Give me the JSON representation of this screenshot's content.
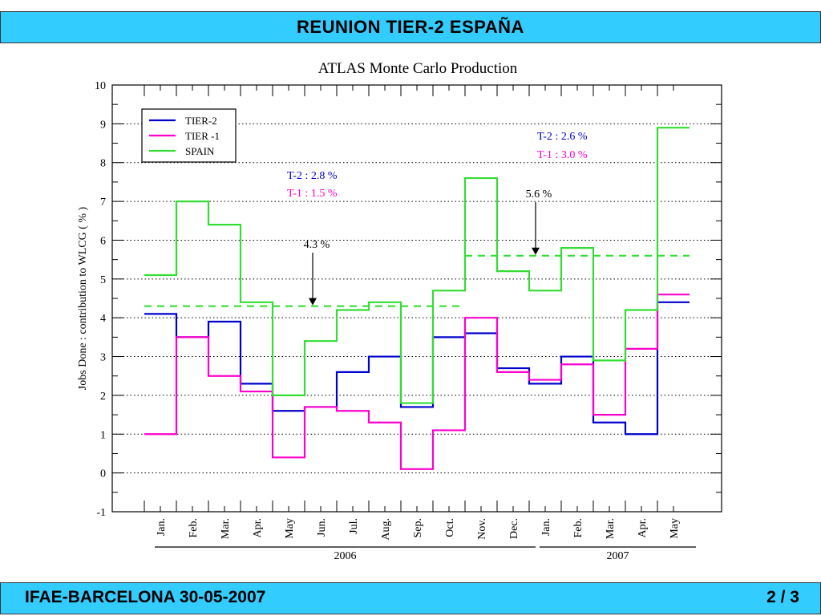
{
  "slide": {
    "header_title": "REUNION  TIER-2  ESPAÑA",
    "footer_left": "IFAE-BARCELONA  30-05-2007",
    "footer_right": "2 / 3"
  },
  "colors": {
    "banner": "#33ccff",
    "tier2": "#0000cc",
    "tier1": "#ff00cc",
    "spain": "#33dd33"
  },
  "chart_data": {
    "type": "line",
    "step": true,
    "title": "ATLAS  Monte  Carlo  Production",
    "ylabel": "Jobs  Done :  contribution  to  WLCG  ( % )",
    "ylim": [
      -1,
      10
    ],
    "yticks": [
      "-1",
      "0",
      "1",
      "2",
      "3",
      "4",
      "5",
      "6",
      "7",
      "8",
      "9",
      "10"
    ],
    "grid": true,
    "legend_position": "top-left",
    "categories": [
      "Jan.",
      "Feb.",
      "Mar.",
      "Apr.",
      "May",
      "Jun.",
      "Jul.",
      "Aug.",
      "Sep.",
      "Oct.",
      "Nov.",
      "Dec.",
      "Jan.",
      "Feb.",
      "Mar.",
      "Apr.",
      "May"
    ],
    "year_groups": [
      {
        "label": "2006",
        "from": 0,
        "to": 11
      },
      {
        "label": "2007",
        "from": 12,
        "to": 16
      }
    ],
    "series": [
      {
        "name": "TIER-2",
        "color": "#0000cc",
        "values": [
          4.1,
          3.5,
          3.9,
          2.3,
          1.6,
          1.7,
          2.6,
          3.0,
          1.7,
          3.5,
          3.6,
          2.7,
          2.3,
          3.0,
          1.3,
          1.0,
          4.4
        ]
      },
      {
        "name": "TIER -1",
        "color": "#ff00cc",
        "values": [
          1.0,
          3.5,
          2.5,
          2.1,
          0.4,
          1.7,
          1.6,
          1.3,
          0.1,
          1.1,
          4.0,
          2.6,
          2.4,
          2.8,
          1.5,
          3.2,
          4.6
        ]
      },
      {
        "name": "SPAIN",
        "color": "#33dd33",
        "values": [
          5.1,
          7.0,
          6.4,
          4.4,
          2.0,
          3.4,
          4.2,
          4.4,
          1.8,
          4.7,
          7.6,
          5.2,
          4.7,
          5.8,
          2.9,
          4.2,
          8.9
        ]
      }
    ],
    "averages": [
      {
        "series": "SPAIN",
        "value": 4.3,
        "from": 0,
        "to": 9,
        "label": "4.3 %"
      },
      {
        "series": "SPAIN",
        "value": 5.6,
        "from": 10,
        "to": 16,
        "label": "5.6 %"
      }
    ],
    "annotations": [
      {
        "text": "T-2 :  2.8 %",
        "color": "#0000cc"
      },
      {
        "text": "T-1 :  1.5 %",
        "color": "#ff00cc"
      },
      {
        "text": "T-2 :  2.6 %",
        "color": "#0000cc"
      },
      {
        "text": "T-1 :  3.0 %",
        "color": "#ff00cc"
      }
    ]
  }
}
